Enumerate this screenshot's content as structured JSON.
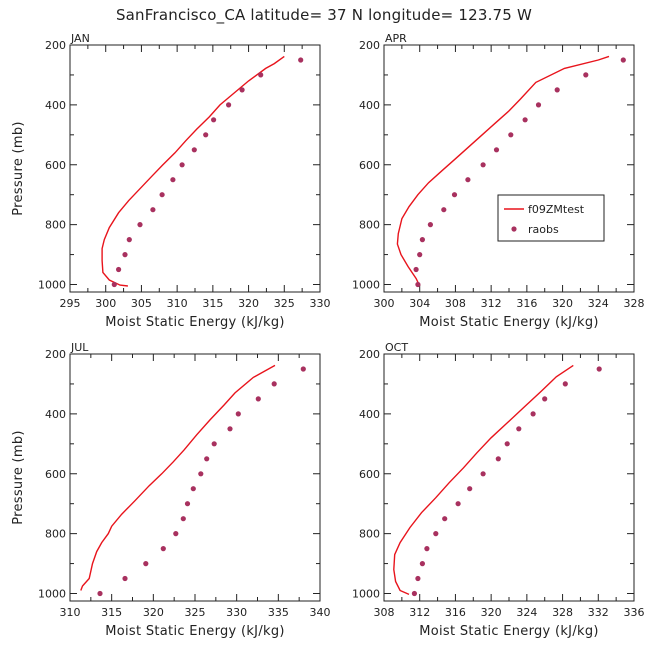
{
  "figure": {
    "title": "SanFrancisco_CA  latitude= 37 N longitude= 123.75 W"
  },
  "colors": {
    "model": "#e8141c",
    "raobs": "#a8315f",
    "axis": "#222222"
  },
  "chart_data": [
    {
      "type": "line",
      "panel": "JAN",
      "xlabel": "Moist Static Energy (kJ/kg)",
      "ylabel": "Pressure (mb)",
      "xlim": [
        295,
        330
      ],
      "ylim": [
        1025,
        200
      ],
      "xticks": [
        295,
        300,
        305,
        310,
        315,
        320,
        325,
        330
      ],
      "yticks": [
        200,
        400,
        600,
        800,
        1000
      ],
      "series": [
        {
          "name": "f09ZMtest",
          "kind": "line",
          "points": [
            [
              325,
              238
            ],
            [
              323.6,
              262
            ],
            [
              322.4,
              278
            ],
            [
              320,
              320
            ],
            [
              318,
              360
            ],
            [
              316,
              400
            ],
            [
              314.5,
              440
            ],
            [
              312.8,
              480
            ],
            [
              311.2,
              520
            ],
            [
              309.7,
              560
            ],
            [
              308,
              600
            ],
            [
              306.4,
              640
            ],
            [
              304.8,
              680
            ],
            [
              303.2,
              720
            ],
            [
              301.8,
              760
            ],
            [
              300.5,
              810
            ],
            [
              299.8,
              850
            ],
            [
              299.5,
              880
            ],
            [
              299.5,
              920
            ],
            [
              299.6,
              960
            ],
            [
              300.5,
              985
            ],
            [
              302,
              1002
            ],
            [
              303.1,
              1005
            ]
          ]
        },
        {
          "name": "raobs",
          "kind": "points",
          "points": [
            [
              327.3,
              250
            ],
            [
              321.7,
              300
            ],
            [
              319.1,
              350
            ],
            [
              317.2,
              400
            ],
            [
              315.1,
              450
            ],
            [
              314,
              500
            ],
            [
              312.4,
              550
            ],
            [
              310.7,
              600
            ],
            [
              309.4,
              650
            ],
            [
              307.9,
              700
            ],
            [
              306.6,
              750
            ],
            [
              304.8,
              800
            ],
            [
              303.3,
              850
            ],
            [
              302.7,
              900
            ],
            [
              301.8,
              950
            ],
            [
              301.2,
              1000
            ]
          ]
        }
      ]
    },
    {
      "type": "line",
      "panel": "APR",
      "xlabel": "Moist Static Energy (kJ/kg)",
      "ylabel": "",
      "xlim": [
        300,
        328
      ],
      "ylim": [
        1025,
        200
      ],
      "xticks": [
        300,
        304,
        308,
        312,
        316,
        320,
        324,
        328
      ],
      "yticks": [
        200,
        400,
        600,
        800,
        1000
      ],
      "legend": {
        "position": "right-middle",
        "entries": [
          "f09ZMtest",
          "raobs"
        ]
      },
      "series": [
        {
          "name": "f09ZMtest",
          "kind": "line",
          "points": [
            [
              325.2,
              238
            ],
            [
              324,
              250
            ],
            [
              320.2,
              278
            ],
            [
              317,
              325
            ],
            [
              315.3,
              380
            ],
            [
              314,
              420
            ],
            [
              312.5,
              460
            ],
            [
              311,
              500
            ],
            [
              309.5,
              540
            ],
            [
              308,
              580
            ],
            [
              306.5,
              620
            ],
            [
              305,
              660
            ],
            [
              303.8,
              700
            ],
            [
              302.8,
              740
            ],
            [
              302,
              780
            ],
            [
              301.6,
              830
            ],
            [
              301.5,
              865
            ],
            [
              301.9,
              900
            ],
            [
              302.7,
              940
            ],
            [
              303.6,
              980
            ],
            [
              304,
              1005
            ]
          ]
        },
        {
          "name": "raobs",
          "kind": "points",
          "points": [
            [
              326.8,
              250
            ],
            [
              322.6,
              300
            ],
            [
              319.4,
              350
            ],
            [
              317.3,
              400
            ],
            [
              315.8,
              450
            ],
            [
              314.2,
              500
            ],
            [
              312.6,
              550
            ],
            [
              311.1,
              600
            ],
            [
              309.4,
              650
            ],
            [
              307.9,
              700
            ],
            [
              306.7,
              750
            ],
            [
              305.2,
              800
            ],
            [
              304.3,
              850
            ],
            [
              304,
              900
            ],
            [
              303.6,
              950
            ],
            [
              303.8,
              1000
            ]
          ]
        }
      ]
    },
    {
      "type": "line",
      "panel": "JUL",
      "xlabel": "Moist Static Energy (kJ/kg)",
      "ylabel": "Pressure (mb)",
      "xlim": [
        310,
        340
      ],
      "ylim": [
        1025,
        200
      ],
      "xticks": [
        310,
        315,
        320,
        325,
        330,
        335,
        340
      ],
      "yticks": [
        200,
        400,
        600,
        800,
        1000
      ],
      "series": [
        {
          "name": "f09ZMtest",
          "kind": "line",
          "points": [
            [
              334.6,
              238
            ],
            [
              332,
              278
            ],
            [
              329.8,
              330
            ],
            [
              328.5,
              370
            ],
            [
              326.8,
              420
            ],
            [
              325.2,
              470
            ],
            [
              323.7,
              520
            ],
            [
              322.4,
              560
            ],
            [
              321,
              600
            ],
            [
              319.5,
              640
            ],
            [
              317.8,
              690
            ],
            [
              316.2,
              735
            ],
            [
              315,
              775
            ],
            [
              314.6,
              800
            ],
            [
              313.8,
              830
            ],
            [
              313.2,
              860
            ],
            [
              312.7,
              900
            ],
            [
              312.3,
              950
            ],
            [
              311.5,
              975
            ],
            [
              311.3,
              990
            ]
          ]
        },
        {
          "name": "raobs",
          "kind": "points",
          "points": [
            [
              338,
              250
            ],
            [
              334.5,
              300
            ],
            [
              332.6,
              350
            ],
            [
              330.2,
              400
            ],
            [
              329.2,
              450
            ],
            [
              327.3,
              500
            ],
            [
              326.4,
              550
            ],
            [
              325.7,
              600
            ],
            [
              324.8,
              650
            ],
            [
              324.1,
              700
            ],
            [
              323.6,
              750
            ],
            [
              322.7,
              800
            ],
            [
              321.2,
              850
            ],
            [
              319.1,
              900
            ],
            [
              316.6,
              950
            ],
            [
              313.6,
              1000
            ]
          ]
        }
      ]
    },
    {
      "type": "line",
      "panel": "OCT",
      "xlabel": "Moist Static Energy (kJ/kg)",
      "ylabel": "",
      "xlim": [
        308,
        336
      ],
      "ylim": [
        1025,
        200
      ],
      "xticks": [
        308,
        312,
        316,
        320,
        324,
        328,
        332,
        336
      ],
      "yticks": [
        200,
        400,
        600,
        800,
        1000
      ],
      "series": [
        {
          "name": "f09ZMtest",
          "kind": "line",
          "points": [
            [
              329.2,
              238
            ],
            [
              327.3,
              276
            ],
            [
              325.6,
              325
            ],
            [
              323.6,
              380
            ],
            [
              321.8,
              430
            ],
            [
              320,
              480
            ],
            [
              318.4,
              530
            ],
            [
              316.9,
              580
            ],
            [
              315.3,
              630
            ],
            [
              313.8,
              680
            ],
            [
              312.2,
              730
            ],
            [
              310.9,
              780
            ],
            [
              309.8,
              830
            ],
            [
              309.2,
              870
            ],
            [
              309.1,
              920
            ],
            [
              309.3,
              960
            ],
            [
              309.8,
              990
            ],
            [
              310.8,
              1003
            ]
          ]
        },
        {
          "name": "raobs",
          "kind": "points",
          "points": [
            [
              332.1,
              250
            ],
            [
              328.3,
              300
            ],
            [
              326,
              350
            ],
            [
              324.7,
              400
            ],
            [
              323.1,
              450
            ],
            [
              321.8,
              500
            ],
            [
              320.8,
              550
            ],
            [
              319.1,
              600
            ],
            [
              317.6,
              650
            ],
            [
              316.3,
              700
            ],
            [
              314.8,
              750
            ],
            [
              313.8,
              800
            ],
            [
              312.8,
              850
            ],
            [
              312.3,
              900
            ],
            [
              311.8,
              950
            ],
            [
              311.4,
              1000
            ]
          ]
        }
      ]
    }
  ]
}
